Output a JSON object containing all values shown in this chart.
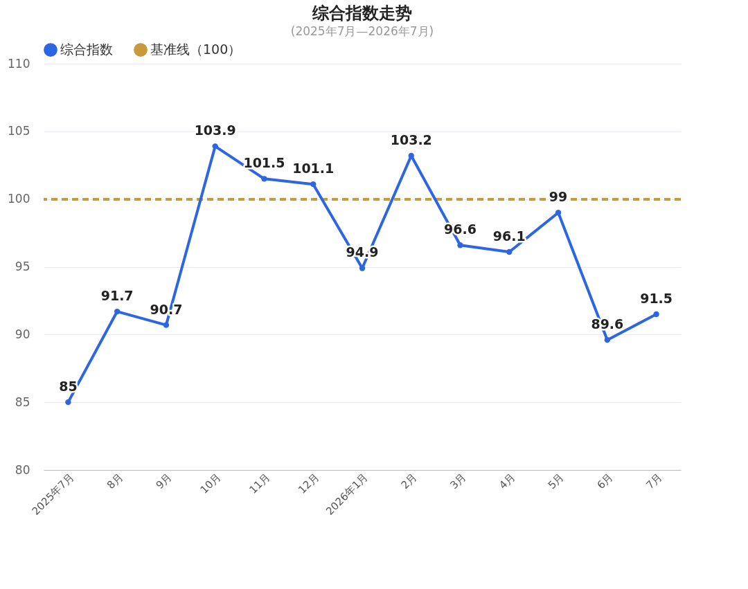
{
  "chart_data": {
    "type": "line",
    "title": "综合指数走势",
    "subtitle": "(2025年7月—2026年7月)",
    "categories": [
      "2025年7月",
      "8月",
      "9月",
      "10月",
      "11月",
      "12月",
      "2026年1月",
      "2月",
      "3月",
      "4月",
      "5月",
      "6月",
      "7月"
    ],
    "series": [
      {
        "name": "综合指数",
        "color": "#2d66e3",
        "values": [
          85,
          91.7,
          90.7,
          103.9,
          101.5,
          101.1,
          94.9,
          103.2,
          96.6,
          96.1,
          99,
          89.6,
          91.5
        ]
      }
    ],
    "ylim": [
      80,
      110
    ],
    "yticks": [
      80,
      85,
      90,
      95,
      100,
      105,
      110
    ],
    "grid": "y",
    "legend": "top",
    "marker": "circle",
    "data_labels": true,
    "ref_lines": [
      {
        "axis": "y",
        "value": 100,
        "label": "基准线（100）",
        "color": "#c99a3c",
        "line_style": "dashed"
      }
    ]
  }
}
